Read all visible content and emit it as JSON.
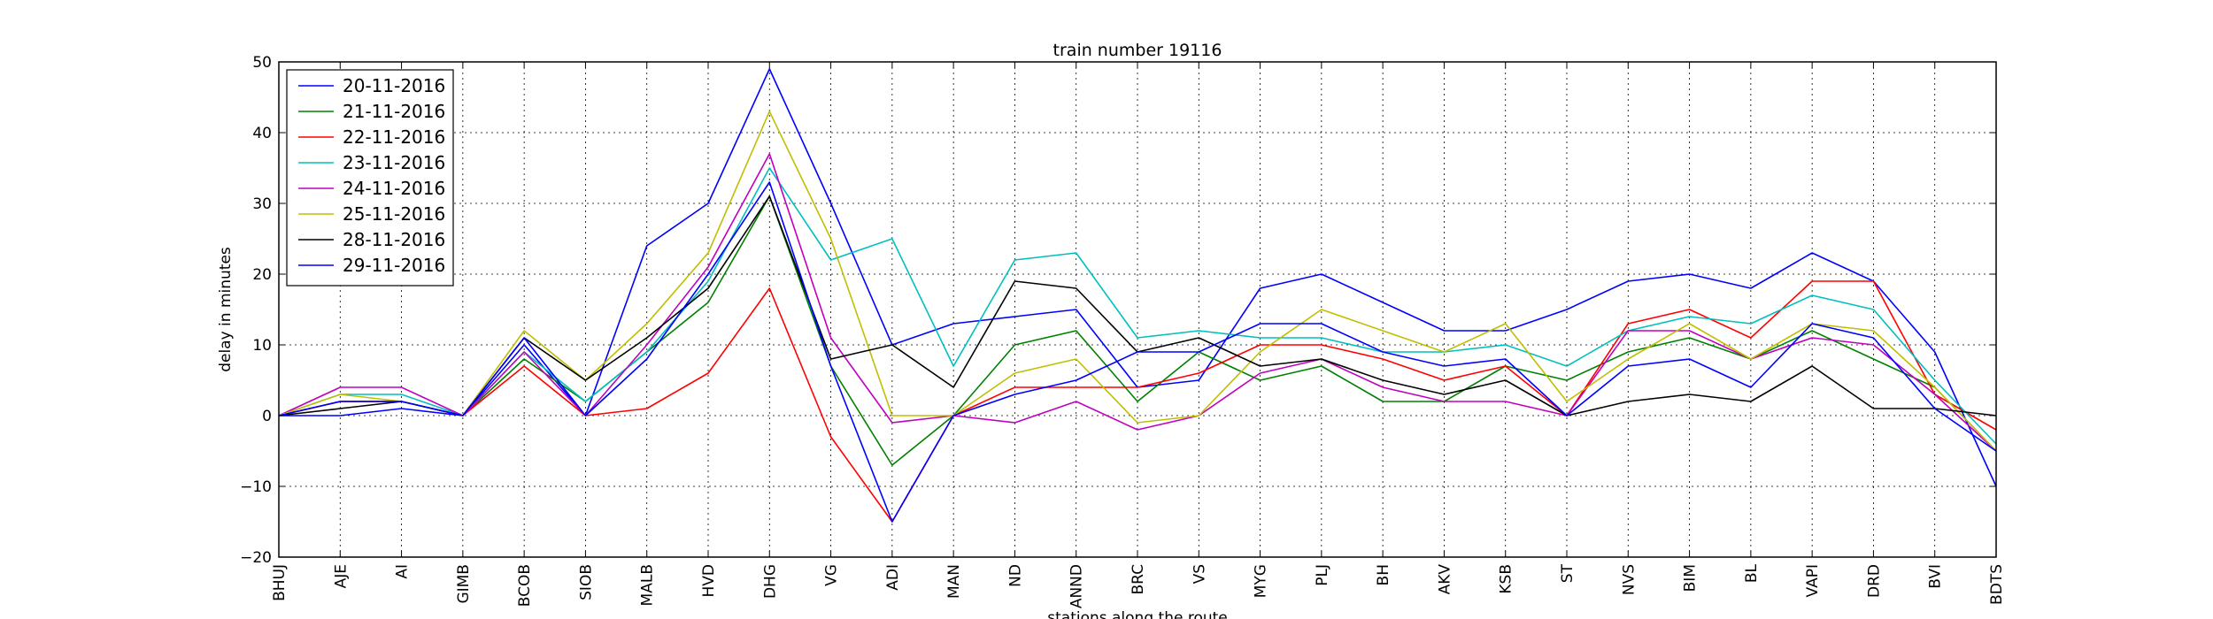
{
  "chart_data": {
    "type": "line",
    "title": "train number 19116",
    "xlabel": "stations along the route",
    "ylabel": "delay in minutes",
    "ylim": [
      -20,
      50
    ],
    "yticks": [
      -20,
      -10,
      0,
      10,
      20,
      30,
      40,
      50
    ],
    "grid": true,
    "legend_position": "top-left",
    "categories": [
      "BHUJ",
      "AJE",
      "AI",
      "GIMB",
      "BCOB",
      "SIOB",
      "MALB",
      "HVD",
      "DHG",
      "VG",
      "ADI",
      "MAN",
      "ND",
      "ANND",
      "BRC",
      "VS",
      "MYG",
      "PLJ",
      "BH",
      "AKV",
      "KSB",
      "ST",
      "NVS",
      "BIM",
      "BL",
      "VAPI",
      "DRD",
      "BVI",
      "BDTS"
    ],
    "series": [
      {
        "name": "20-11-2016",
        "color": "#0000ff",
        "values": [
          0,
          0,
          1,
          0,
          10,
          0,
          24,
          30,
          49,
          30,
          10,
          13,
          14,
          15,
          4,
          5,
          18,
          20,
          16,
          12,
          12,
          15,
          19,
          20,
          18,
          23,
          19,
          9,
          -10
        ]
      },
      {
        "name": "21-11-2016",
        "color": "#008000",
        "values": [
          0,
          2,
          2,
          0,
          8,
          2,
          9,
          16,
          31,
          7,
          -7,
          0,
          10,
          12,
          2,
          9,
          5,
          7,
          2,
          2,
          7,
          5,
          9,
          11,
          8,
          12,
          8,
          4,
          -5
        ]
      },
      {
        "name": "22-11-2016",
        "color": "#ff0000",
        "values": [
          0,
          2,
          2,
          0,
          7,
          0,
          1,
          6,
          18,
          -3,
          -15,
          0,
          4,
          4,
          4,
          6,
          10,
          10,
          8,
          5,
          7,
          0,
          13,
          15,
          11,
          19,
          19,
          3,
          -2
        ]
      },
      {
        "name": "23-11-2016",
        "color": "#00bfbf",
        "values": [
          0,
          3,
          3,
          0,
          9,
          2,
          9,
          19,
          35,
          22,
          25,
          7,
          22,
          23,
          11,
          12,
          11,
          11,
          9,
          9,
          10,
          7,
          12,
          14,
          13,
          17,
          15,
          5,
          -4
        ]
      },
      {
        "name": "24-11-2016",
        "color": "#bf00bf",
        "values": [
          0,
          4,
          4,
          0,
          9,
          0,
          10,
          21,
          37,
          11,
          -1,
          0,
          -1,
          2,
          -2,
          0,
          6,
          8,
          4,
          2,
          2,
          0,
          12,
          12,
          8,
          11,
          10,
          3,
          -5
        ]
      },
      {
        "name": "25-11-2016",
        "color": "#bfbf00",
        "values": [
          0,
          3,
          2,
          0,
          12,
          5,
          13,
          23,
          43,
          25,
          0,
          0,
          6,
          8,
          -1,
          0,
          9,
          15,
          12,
          9,
          13,
          2,
          8,
          13,
          8,
          13,
          12,
          4,
          -5
        ]
      },
      {
        "name": "28-11-2016",
        "color": "#000000",
        "values": [
          0,
          1,
          2,
          0,
          11,
          5,
          11,
          18,
          31,
          8,
          10,
          4,
          19,
          18,
          9,
          11,
          7,
          8,
          5,
          3,
          5,
          0,
          2,
          3,
          2,
          7,
          1,
          1,
          0
        ]
      },
      {
        "name": "29-11-2016",
        "color": "#0000ff",
        "values": [
          0,
          2,
          2,
          0,
          11,
          0,
          8,
          20,
          33,
          7,
          -15,
          0,
          3,
          5,
          9,
          9,
          13,
          13,
          9,
          7,
          8,
          0,
          7,
          8,
          4,
          13,
          11,
          1,
          -5
        ]
      }
    ]
  }
}
